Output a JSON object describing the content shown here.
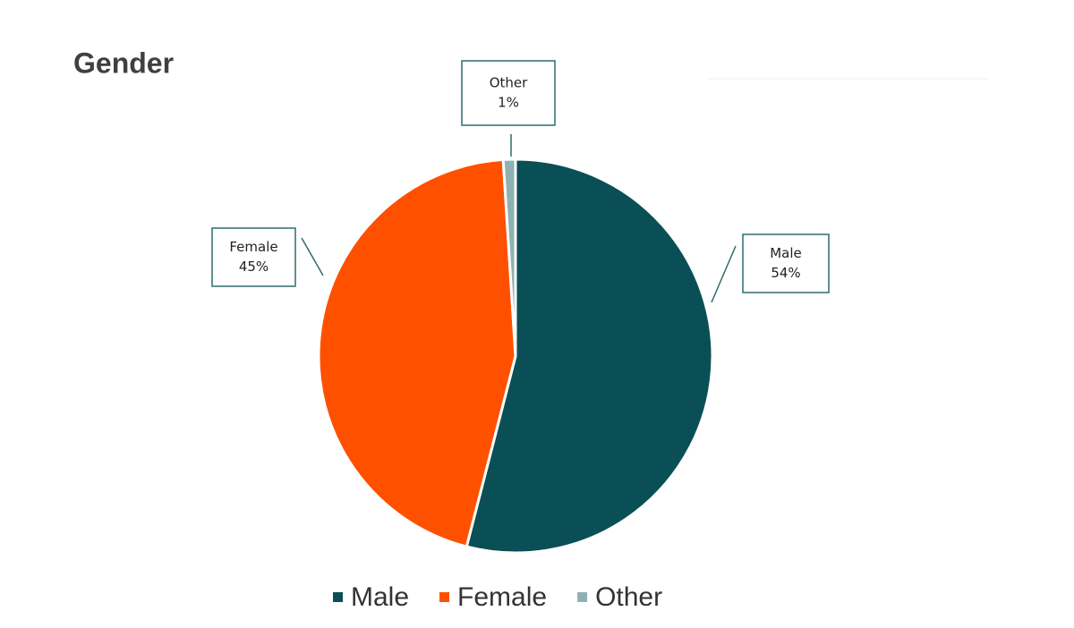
{
  "chart_data": {
    "type": "pie",
    "title": "Gender",
    "categories": [
      "Male",
      "Female",
      "Other"
    ],
    "values": [
      54,
      45,
      1
    ],
    "value_labels": [
      "54%",
      "45%",
      "1%"
    ],
    "colors": [
      "#0a4f55",
      "#ff5000",
      "#8fb1b3"
    ],
    "legend": "bottom"
  }
}
